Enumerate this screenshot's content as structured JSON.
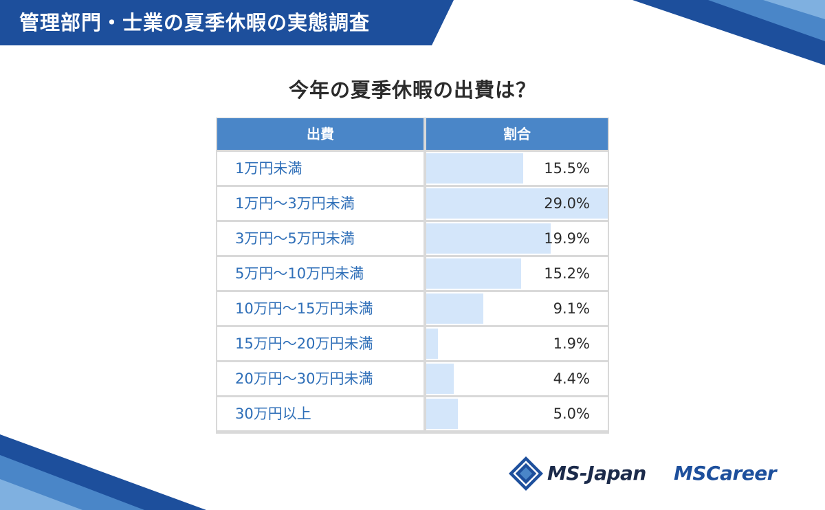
{
  "header": {
    "title": "管理部門・士業の夏季休暇の実態調査"
  },
  "question": "今年の夏季休暇の出費は？",
  "table": {
    "col_expense": "出費",
    "col_ratio": "割合"
  },
  "chart_data": {
    "type": "table",
    "title": "今年の夏季休暇の出費は？",
    "columns": [
      "出費",
      "割合"
    ],
    "categories": [
      "1万円未満",
      "1万円〜3万円未満",
      "3万円〜5万円未満",
      "5万円〜10万円未満",
      "10万円〜15万円未満",
      "15万円〜20万円未満",
      "20万円〜30万円未満",
      "30万円以上"
    ],
    "values": [
      15.5,
      29.0,
      19.9,
      15.2,
      9.1,
      1.9,
      4.4,
      5.0
    ],
    "labels": [
      "15.5%",
      "29.0%",
      "19.9%",
      "15.2%",
      "9.1%",
      "1.9%",
      "4.4%",
      "5.0%"
    ],
    "unit": "%",
    "bar_max": 29.0
  },
  "logos": {
    "ms_japan": "MS-Japan",
    "mscareer": "MSCareer"
  },
  "colors": {
    "brand_blue": "#1d4f9c",
    "header_blue": "#4a86c8",
    "bar_fill": "#d4e6fa",
    "label_text": "#2f6fb8"
  }
}
